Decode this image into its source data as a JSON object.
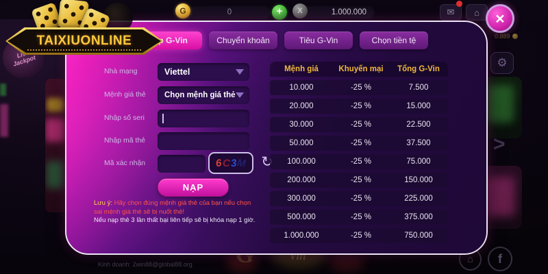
{
  "topbar": {
    "gvin_balance": "0",
    "coin_balance": "1.000.000",
    "g_coin": "G",
    "x_coin": "X",
    "plus_icon": "+",
    "mail_icon": "✉",
    "shop_icon": "⌂",
    "close_icon": "×"
  },
  "logo": {
    "title": "TAIXIUONLINE",
    "jackpot_line1": "List",
    "jackpot_line2": "Jackpot"
  },
  "modal": {
    "tabs": [
      "Nạp G-Vin",
      "Chuyển khoản",
      "Tiêu G-Vin",
      "Chọn tiền tệ"
    ],
    "form": {
      "network_label": "Nhà mạng",
      "network_value": "Viettel",
      "denomination_label": "Mệnh giá thẻ",
      "denomination_value": "Chọn mệnh giá thẻ",
      "serial_label": "Nhập số seri",
      "serial_value": "",
      "card_code_label": "Nhập mã thẻ",
      "card_code_value": "",
      "captcha_label": "Mã xác nhận",
      "captcha_value": "",
      "captcha_chars": [
        "6",
        "C",
        "3",
        "M"
      ],
      "refresh_icon": "↻",
      "submit_label": "NẠP",
      "note_prefix": "Lưu ý:",
      "note_warning": "Hãy chọn đúng mệnh giá thẻ của bạn nếu chọn sai mệnh giá thẻ sẽ bị nuốt thẻ!",
      "note_info": "Nếu nạp thẻ 3 lần thất bại liên tiếp sẽ bị khóa nạp 1 giờ."
    },
    "table": {
      "headers": [
        "Mệnh giá",
        "Khuyến mại",
        "Tổng G-Vin"
      ],
      "rows": [
        [
          "10.000",
          "-25 %",
          "7.500"
        ],
        [
          "20.000",
          "-25 %",
          "15.000"
        ],
        [
          "30.000",
          "-25 %",
          "22.500"
        ],
        [
          "50.000",
          "-25 %",
          "37.500"
        ],
        [
          "100.000",
          "-25 %",
          "75.000"
        ],
        [
          "200.000",
          "-25 %",
          "150.000"
        ],
        [
          "300.000",
          "-25 %",
          "225.000"
        ],
        [
          "500.000",
          "-25 %",
          "375.000"
        ],
        [
          "1.000.000",
          "-25 %",
          "750.000"
        ]
      ]
    }
  },
  "background": {
    "contact_text": "Kinh doanh: 2win88@global88.org",
    "lobby_balance": "0.889",
    "gear_icon": "⚙",
    "chevron_right_icon": ">",
    "facebook_icon": "f",
    "home_icon": "⌂",
    "logo_g": "G",
    "logo_sub": "Vin"
  },
  "colors": {
    "accent_magenta": "#ff2dc7",
    "table_header_gold": "#f1b93c",
    "note_yellow": "#ffd24a",
    "warning_red": "#ff5545"
  }
}
